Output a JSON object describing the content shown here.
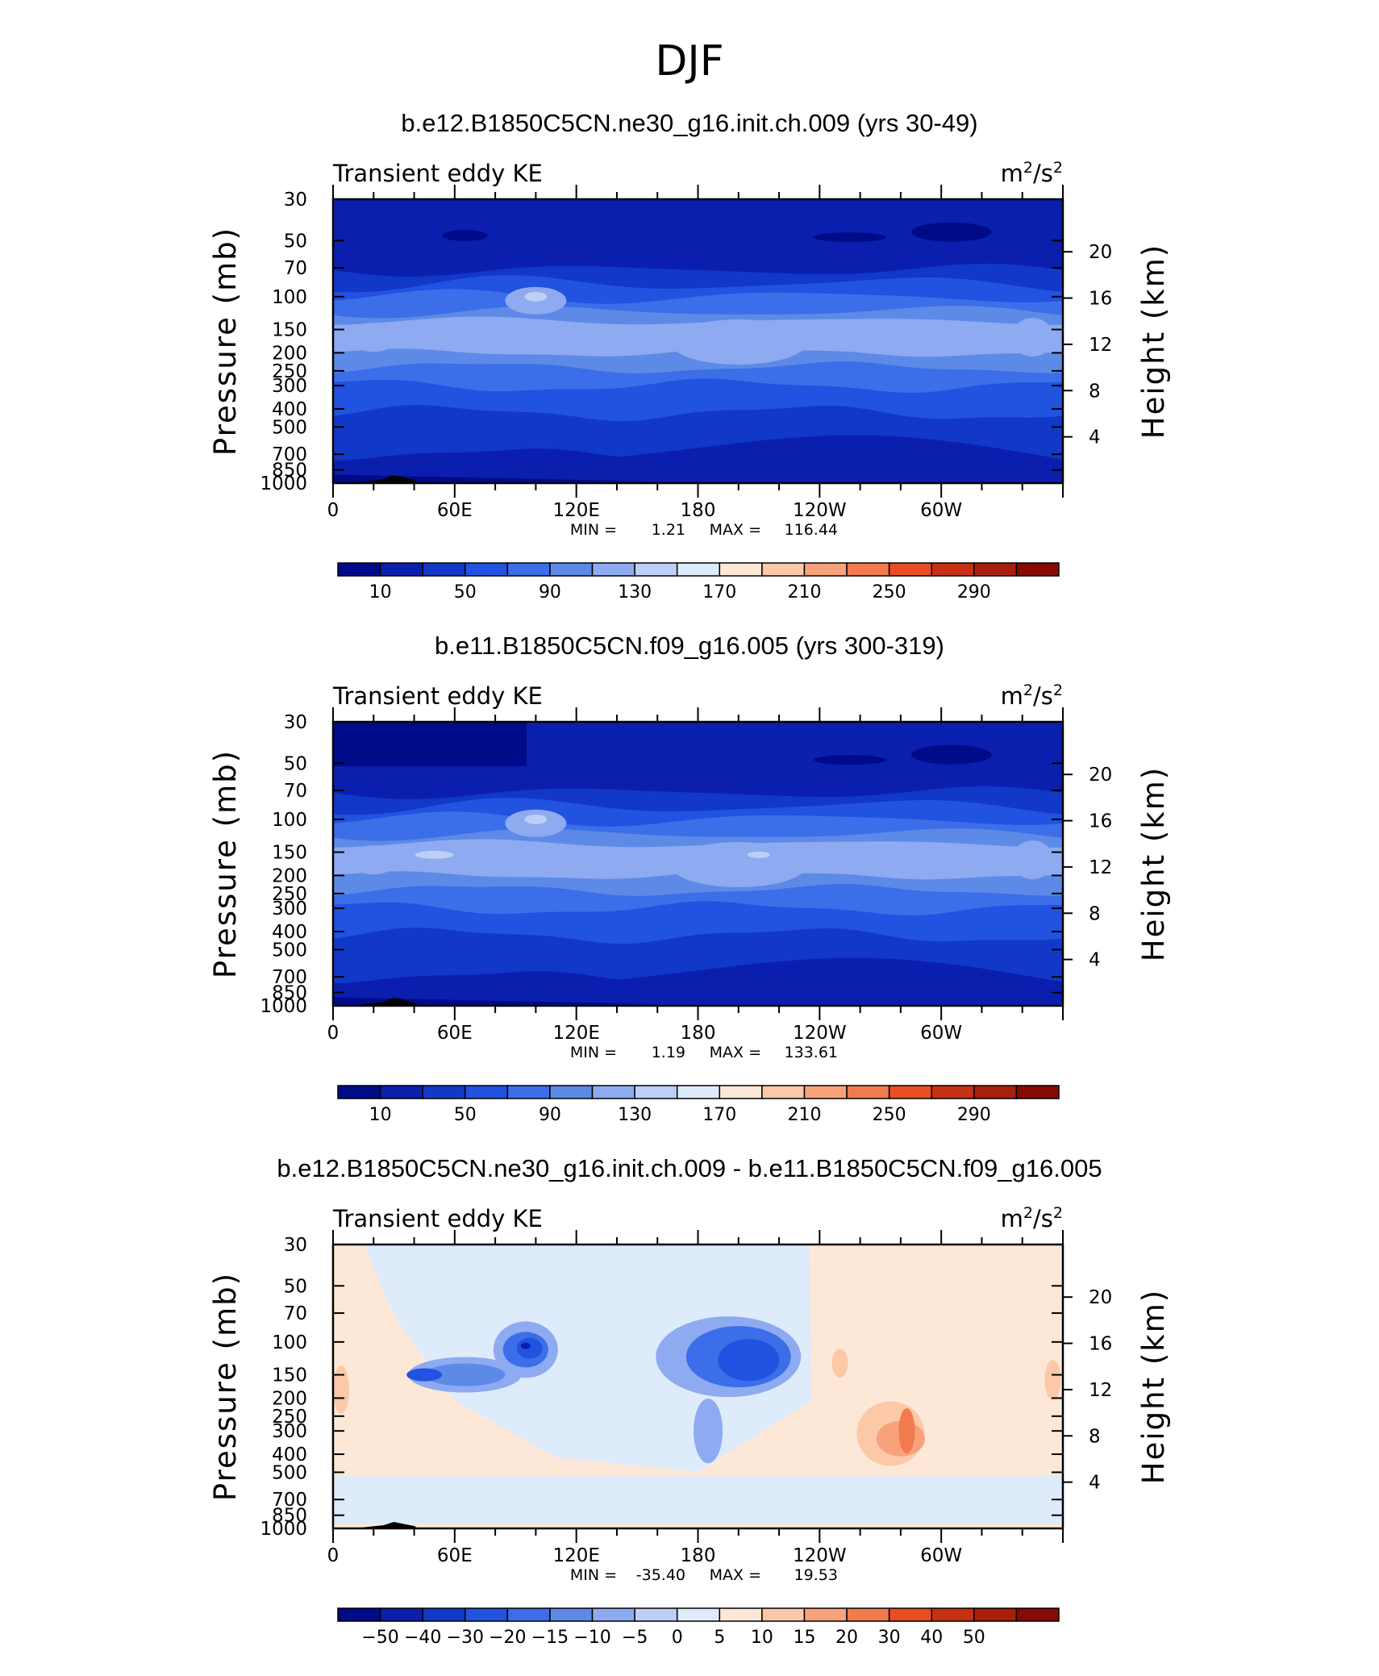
{
  "figure_title": "DJF",
  "chart_data": [
    {
      "type": "heatmap",
      "title": "b.e12.B1850C5CN.ne30_g16.init.ch.009 (yrs 30-49)",
      "variable": "Transient eddy KE",
      "units_base": "m",
      "units_sup1": "2",
      "units_mid": "/s",
      "units_sup2": "2",
      "xlabel": "",
      "ylabel": "Pressure (mb)",
      "ylabel_right": "Height (km)",
      "x_ticks": [
        "0",
        "60E",
        "120E",
        "180",
        "120W",
        "60W"
      ],
      "y_ticks": [
        "30",
        "50",
        "70",
        "100",
        "150",
        "200",
        "250",
        "300",
        "400",
        "500",
        "700",
        "850",
        "1000"
      ],
      "y_ticks_right": [
        "20",
        "16",
        "12",
        "8",
        "4"
      ],
      "xlim": [
        0,
        360
      ],
      "ylim": [
        1000,
        30
      ],
      "stats": {
        "min_label": "MIN =",
        "min": "1.21",
        "max_label": "MAX =",
        "max": "116.44"
      },
      "colorbar": {
        "levels": [
          10,
          30,
          50,
          70,
          90,
          110,
          130,
          150,
          170,
          190,
          210,
          230,
          250,
          270,
          290
        ],
        "labels": [
          "10",
          "50",
          "90",
          "130",
          "170",
          "210",
          "250",
          "290"
        ],
        "colors": [
          "#000b8a",
          "#0a1fae",
          "#1238c8",
          "#2152e0",
          "#3b6ee8",
          "#5d8ae6",
          "#8eaaf0",
          "#bccff6",
          "#ddebfb",
          "#fde8d8",
          "#fcc9a8",
          "#f8a27c",
          "#f17a4f",
          "#e84e22",
          "#c53112",
          "#a8200c",
          "#870a03"
        ]
      },
      "grid": false
    },
    {
      "type": "heatmap",
      "title": "b.e11.B1850C5CN.f09_g16.005 (yrs 300-319)",
      "variable": "Transient eddy KE",
      "units_base": "m",
      "units_sup1": "2",
      "units_mid": "/s",
      "units_sup2": "2",
      "xlabel": "",
      "ylabel": "Pressure (mb)",
      "ylabel_right": "Height (km)",
      "x_ticks": [
        "0",
        "60E",
        "120E",
        "180",
        "120W",
        "60W"
      ],
      "y_ticks": [
        "30",
        "50",
        "70",
        "100",
        "150",
        "200",
        "250",
        "300",
        "400",
        "500",
        "700",
        "850",
        "1000"
      ],
      "y_ticks_right": [
        "20",
        "16",
        "12",
        "8",
        "4"
      ],
      "xlim": [
        0,
        360
      ],
      "ylim": [
        1000,
        30
      ],
      "stats": {
        "min_label": "MIN =",
        "min": "1.19",
        "max_label": "MAX =",
        "max": "133.61"
      },
      "colorbar": {
        "levels": [
          10,
          30,
          50,
          70,
          90,
          110,
          130,
          150,
          170,
          190,
          210,
          230,
          250,
          270,
          290
        ],
        "labels": [
          "10",
          "50",
          "90",
          "130",
          "170",
          "210",
          "250",
          "290"
        ],
        "colors": [
          "#000b8a",
          "#0a1fae",
          "#1238c8",
          "#2152e0",
          "#3b6ee8",
          "#5d8ae6",
          "#8eaaf0",
          "#bccff6",
          "#ddebfb",
          "#fde8d8",
          "#fcc9a8",
          "#f8a27c",
          "#f17a4f",
          "#e84e22",
          "#c53112",
          "#a8200c",
          "#870a03"
        ]
      },
      "grid": false
    },
    {
      "type": "heatmap",
      "title": "b.e12.B1850C5CN.ne30_g16.init.ch.009 - b.e11.B1850C5CN.f09_g16.005",
      "variable": "Transient eddy KE",
      "units_base": "m",
      "units_sup1": "2",
      "units_mid": "/s",
      "units_sup2": "2",
      "xlabel": "",
      "ylabel": "Pressure (mb)",
      "ylabel_right": "Height (km)",
      "x_ticks": [
        "0",
        "60E",
        "120E",
        "180",
        "120W",
        "60W"
      ],
      "y_ticks": [
        "30",
        "50",
        "70",
        "100",
        "150",
        "200",
        "250",
        "300",
        "400",
        "500",
        "700",
        "850",
        "1000"
      ],
      "y_ticks_right": [
        "20",
        "16",
        "12",
        "8",
        "4"
      ],
      "xlim": [
        0,
        360
      ],
      "ylim": [
        1000,
        30
      ],
      "stats": {
        "min_label": "MIN =",
        "min": "-35.40",
        "max_label": "MAX =",
        "max": "19.53"
      },
      "colorbar": {
        "levels": [
          -50,
          -40,
          -30,
          -20,
          -15,
          -10,
          -5,
          0,
          5,
          10,
          15,
          20,
          30,
          40,
          50
        ],
        "labels": [
          "-50",
          "-40",
          "-30",
          "-20",
          "-15",
          "-10",
          "-5",
          "0",
          "5",
          "10",
          "15",
          "20",
          "30",
          "40",
          "50"
        ],
        "colors": [
          "#000b8a",
          "#0a1fae",
          "#1238c8",
          "#2152e0",
          "#3b6ee8",
          "#5d8ae6",
          "#8eaaf0",
          "#bccff6",
          "#ddebfb",
          "#fde8d8",
          "#fcc9a8",
          "#f8a27c",
          "#f17a4f",
          "#e84e22",
          "#c53112",
          "#a8200c",
          "#870a03"
        ]
      },
      "grid": false
    }
  ]
}
